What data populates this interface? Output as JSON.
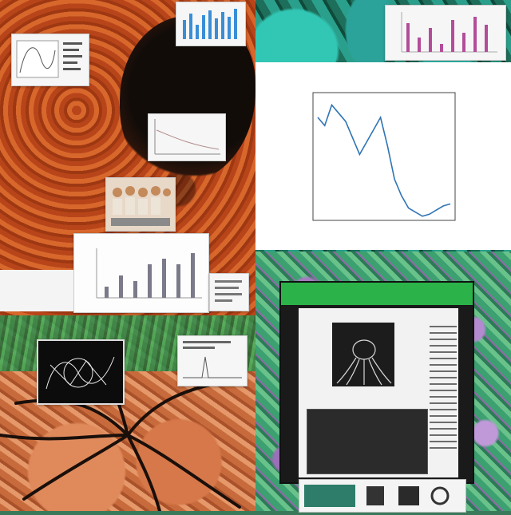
{
  "main_chart": {
    "title": "",
    "chart_data": {
      "type": "line",
      "title": "",
      "xlabel": "",
      "ylabel": "",
      "x": [
        0,
        1,
        2,
        3,
        4,
        5,
        6,
        7,
        8,
        9,
        10,
        11,
        12,
        13,
        14,
        15,
        16,
        17,
        18,
        19
      ],
      "values": [
        11.8,
        11.6,
        12.1,
        11.9,
        11.7,
        11.3,
        10.9,
        11.2,
        11.5,
        11.8,
        11.1,
        10.3,
        9.9,
        9.6,
        9.5,
        9.4,
        9.45,
        9.55,
        9.65,
        9.7
      ],
      "ylim": [
        9.3,
        12.4
      ],
      "grid": false,
      "color": "#2f74b5"
    }
  },
  "left_caption": {
    "line1": "",
    "line2": ""
  },
  "screen": {
    "header_color": "#2bb34a",
    "page_title": ""
  },
  "bar_chart_small": {
    "values": [
      2,
      4,
      3,
      6,
      7,
      6,
      8
    ]
  }
}
